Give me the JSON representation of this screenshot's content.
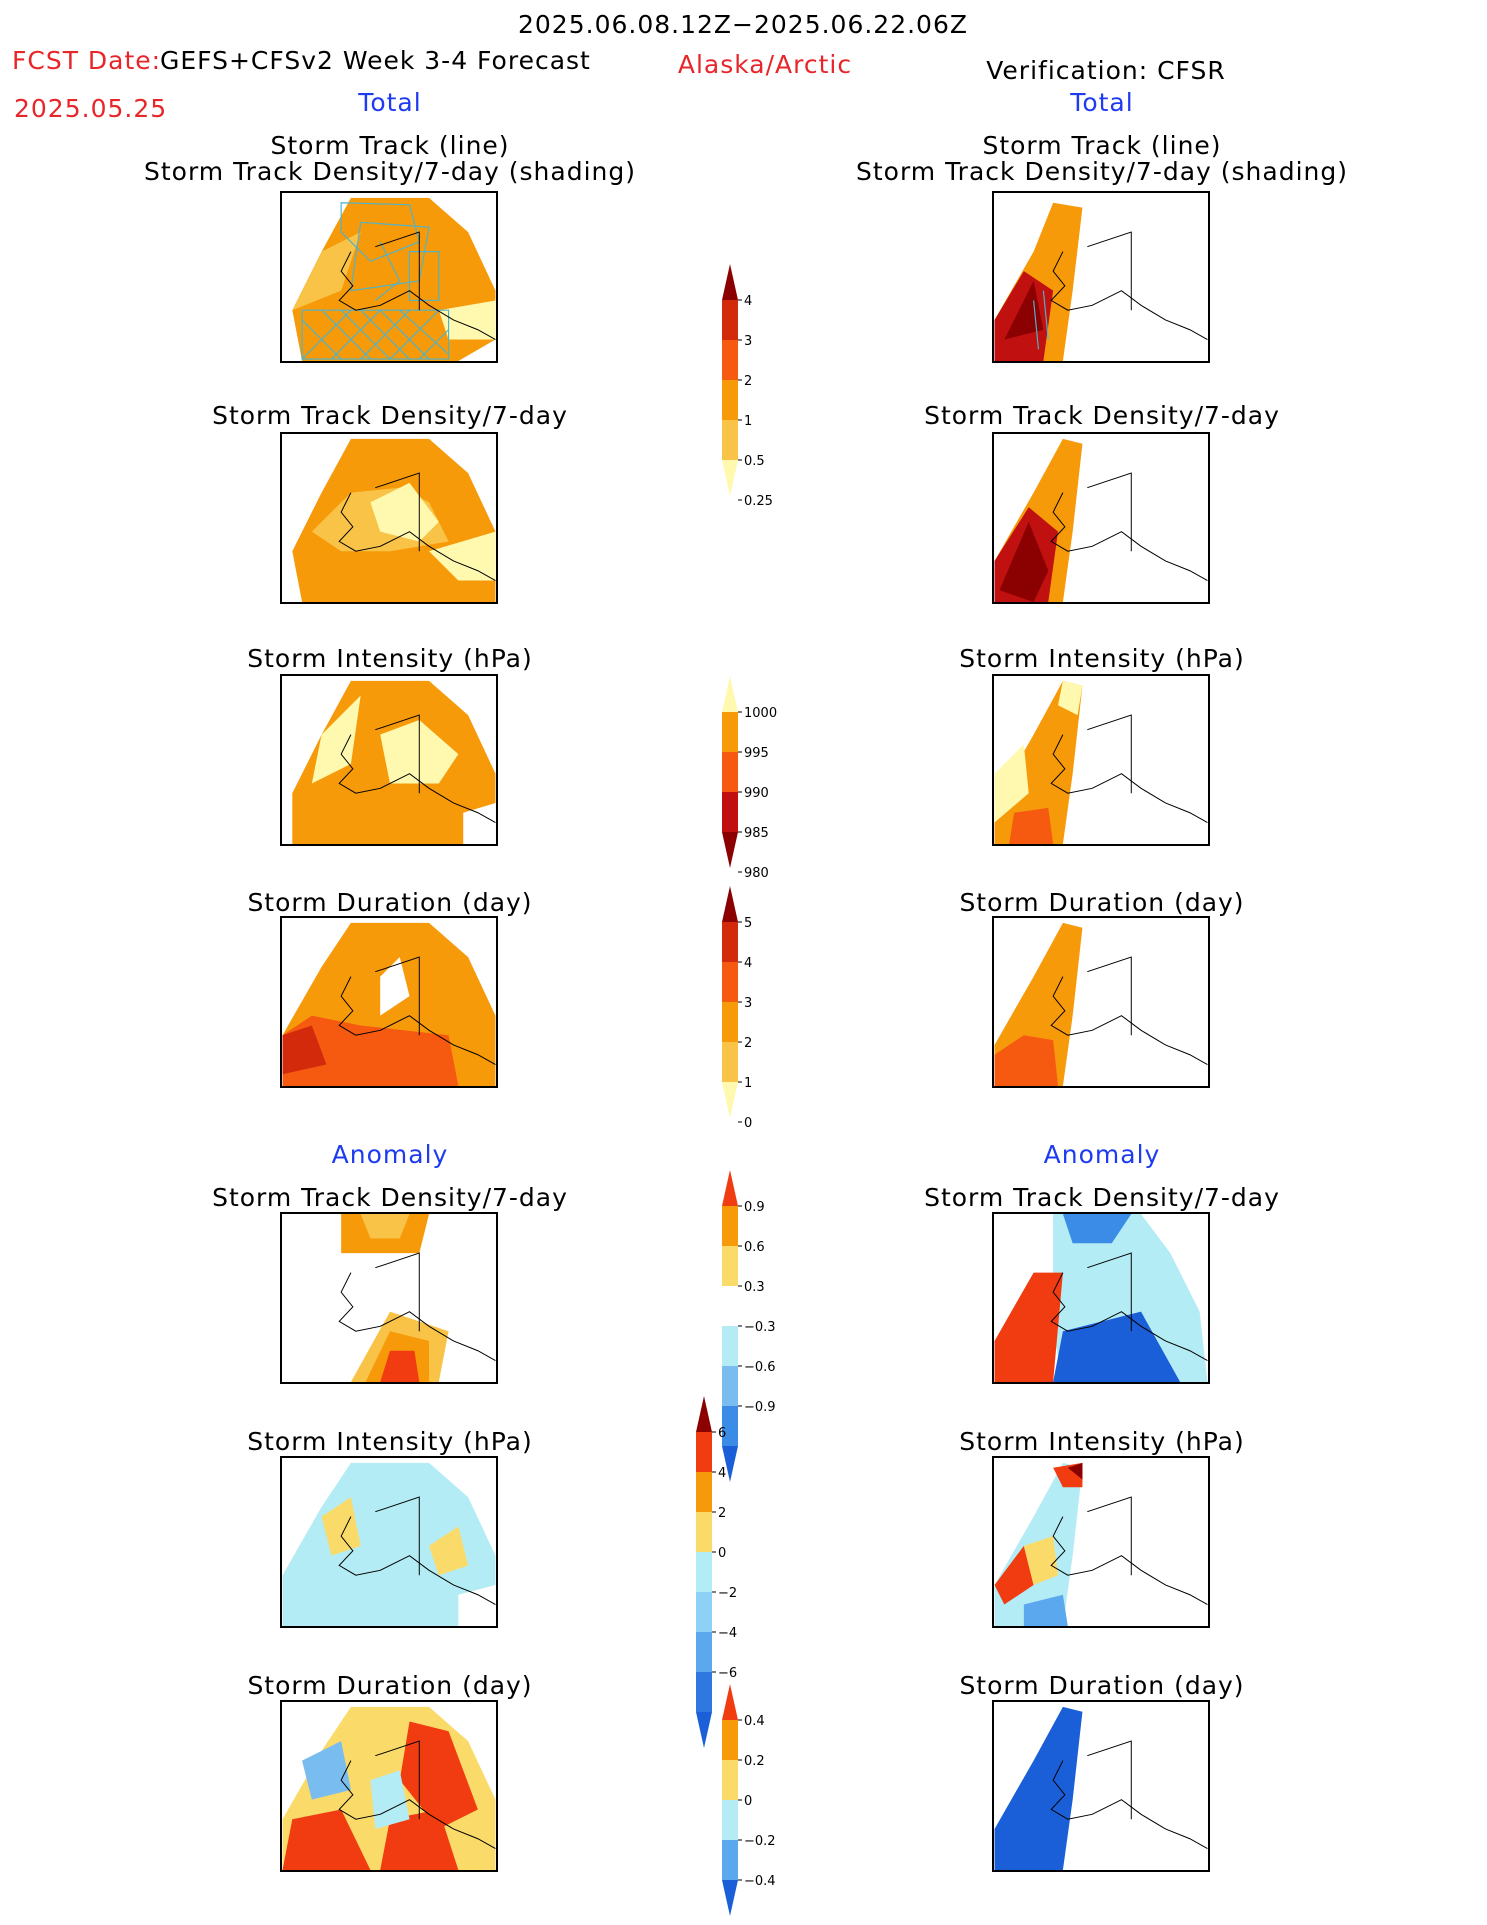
{
  "header": {
    "date_range": "2025.06.08.12Z−2025.06.22.06Z",
    "fcst_label": "FCST Date:",
    "fcst_product": "GEFS+CFSv2 Week 3-4 Forecast",
    "fcst_date": "2025.05.25",
    "region": "Alaska/Arctic",
    "verification": "Verification: CFSR"
  },
  "sections": {
    "total_left": "Total",
    "total_right": "Total",
    "anomaly_left": "Anomaly",
    "anomaly_right": "Anomaly"
  },
  "panel_titles": {
    "track_line": "Storm Track (line)",
    "track_density_shading": "Storm Track Density/7-day (shading)",
    "track_density": "Storm Track Density/7-day",
    "intensity": "Storm Intensity (hPa)",
    "duration": "Storm Duration (day)"
  },
  "colorbars": {
    "track_density_total": {
      "ticks": [
        "4",
        "3",
        "2",
        "1",
        "0.5",
        "0.25"
      ],
      "colors": [
        "#8b0000",
        "#d42a0c",
        "#f55a10",
        "#f79a0a",
        "#f9c348",
        "#fff9b0"
      ]
    },
    "intensity_total": {
      "ticks": [
        "1000",
        "995",
        "990",
        "985",
        "980"
      ],
      "colors": [
        "#fff9b0",
        "#f79a0a",
        "#f55a10",
        "#c01010",
        "#8b0000"
      ]
    },
    "duration_total": {
      "ticks": [
        "5",
        "4",
        "3",
        "2",
        "1",
        "0"
      ],
      "colors": [
        "#8b0000",
        "#d42a0c",
        "#f55a10",
        "#f79a0a",
        "#f9c348",
        "#fff9b0"
      ]
    },
    "track_density_anom": {
      "ticks": [
        "0.9",
        "0.6",
        "0.3",
        "−0.3",
        "−0.6",
        "−0.9"
      ],
      "colors": [
        "#f03c10",
        "#f79a0a",
        "#fadb6a",
        "#ffffff",
        "#b4ecf5",
        "#78bcf0",
        "#3a8ce6",
        "#1a5fd8"
      ]
    },
    "intensity_anom": {
      "ticks": [
        "6",
        "4",
        "2",
        "0",
        "−2",
        "−4",
        "−6"
      ],
      "colors": [
        "#8b0000",
        "#f03c10",
        "#f79a0a",
        "#fadb6a",
        "#b4ecf5",
        "#8fd0f5",
        "#5ba8ee",
        "#2f78e0",
        "#1a5fd8"
      ]
    },
    "duration_anom": {
      "ticks": [
        "0.4",
        "0.2",
        "0",
        "−0.2",
        "−0.4"
      ],
      "colors": [
        "#f03c10",
        "#f79a0a",
        "#fadb6a",
        "#b4ecf5",
        "#5ba8ee",
        "#1a5fd8"
      ]
    }
  }
}
